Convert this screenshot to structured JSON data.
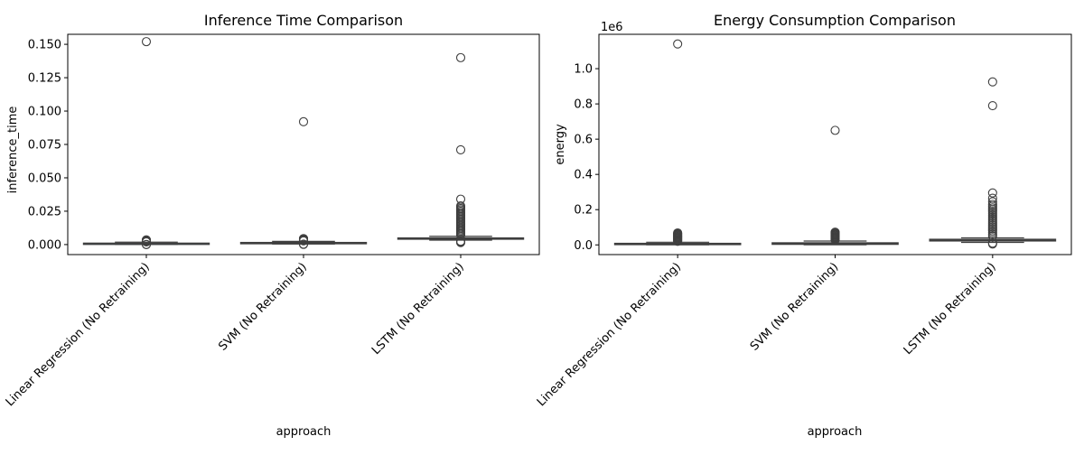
{
  "chart_data": [
    {
      "type": "box",
      "title": "Inference Time Comparison",
      "xlabel": "approach",
      "ylabel": "inference_time",
      "categories": [
        "Linear Regression (No Retraining)",
        "SVM (No Retraining)",
        "LSTM (No Retraining)"
      ],
      "ylim": [
        -0.0075,
        0.1575
      ],
      "yticks": [
        0.0,
        0.025,
        0.05,
        0.075,
        0.1,
        0.125,
        0.15
      ],
      "ytick_labels": [
        "0.000",
        "0.025",
        "0.050",
        "0.075",
        "0.100",
        "0.125",
        "0.150"
      ],
      "offset_label": "",
      "color": "#3b75af",
      "boxes": [
        {
          "category": "Linear Regression (No Retraining)",
          "q1": 0.0005,
          "median": 0.0008,
          "q3": 0.0011,
          "whisker_low": 0.0002,
          "whisker_high": 0.0018,
          "outliers": [
            0.152,
            0.0035,
            0.0032,
            0.003,
            0.0028,
            0.0026,
            0.0024,
            0.0022,
            0.002,
            0.0001,
            0.0
          ]
        },
        {
          "category": "SVM (No Retraining)",
          "q1": 0.0009,
          "median": 0.0012,
          "q3": 0.0016,
          "whisker_low": 0.0004,
          "whisker_high": 0.0024,
          "outliers": [
            0.092,
            0.0045,
            0.0042,
            0.0038,
            0.0035,
            0.0032,
            0.003,
            0.0028,
            0.0003,
            0.0001
          ]
        },
        {
          "category": "LSTM (No Retraining)",
          "q1": 0.0042,
          "median": 0.0046,
          "q3": 0.005,
          "whisker_low": 0.0033,
          "whisker_high": 0.0062,
          "outliers": [
            0.14,
            0.071,
            0.034,
            0.029,
            0.028,
            0.027,
            0.026,
            0.025,
            0.024,
            0.023,
            0.022,
            0.021,
            0.02,
            0.019,
            0.018,
            0.017,
            0.016,
            0.015,
            0.014,
            0.013,
            0.012,
            0.011,
            0.01,
            0.009,
            0.008,
            0.007,
            0.0025,
            0.002,
            0.0015
          ]
        }
      ]
    },
    {
      "type": "box",
      "title": "Energy Consumption Comparison",
      "xlabel": "approach",
      "ylabel": "energy",
      "categories": [
        "Linear Regression (No Retraining)",
        "SVM (No Retraining)",
        "LSTM (No Retraining)"
      ],
      "ylim": [
        -55000,
        1195000
      ],
      "yticks": [
        0,
        200000,
        400000,
        600000,
        800000,
        1000000
      ],
      "ytick_labels": [
        "0.0",
        "0.2",
        "0.4",
        "0.6",
        "0.8",
        "1.0"
      ],
      "offset_label": "1e6",
      "color": "#3b75af",
      "boxes": [
        {
          "category": "Linear Regression (No Retraining)",
          "q1": 3000,
          "median": 6000,
          "q3": 9000,
          "whisker_low": 500,
          "whisker_high": 15000,
          "outliers": [
            1140000,
            68000,
            64000,
            60000,
            56000,
            52000,
            48000,
            44000,
            40000,
            36000,
            32000,
            28000,
            24000,
            20000
          ]
        },
        {
          "category": "SVM (No Retraining)",
          "q1": 3000,
          "median": 7000,
          "q3": 12000,
          "whisker_low": 500,
          "whisker_high": 22000,
          "outliers": [
            650000,
            72000,
            68000,
            64000,
            60000,
            56000,
            52000,
            48000,
            44000,
            40000,
            36000,
            32000,
            28000
          ]
        },
        {
          "category": "LSTM (No Retraining)",
          "q1": 22000,
          "median": 27000,
          "q3": 32000,
          "whisker_low": 14000,
          "whisker_high": 40000,
          "outliers": [
            925000,
            790000,
            295000,
            265000,
            245000,
            230000,
            220000,
            210000,
            200000,
            190000,
            180000,
            170000,
            160000,
            150000,
            140000,
            130000,
            120000,
            110000,
            100000,
            90000,
            80000,
            70000,
            60000,
            50000,
            10000,
            5000
          ]
        }
      ]
    }
  ]
}
